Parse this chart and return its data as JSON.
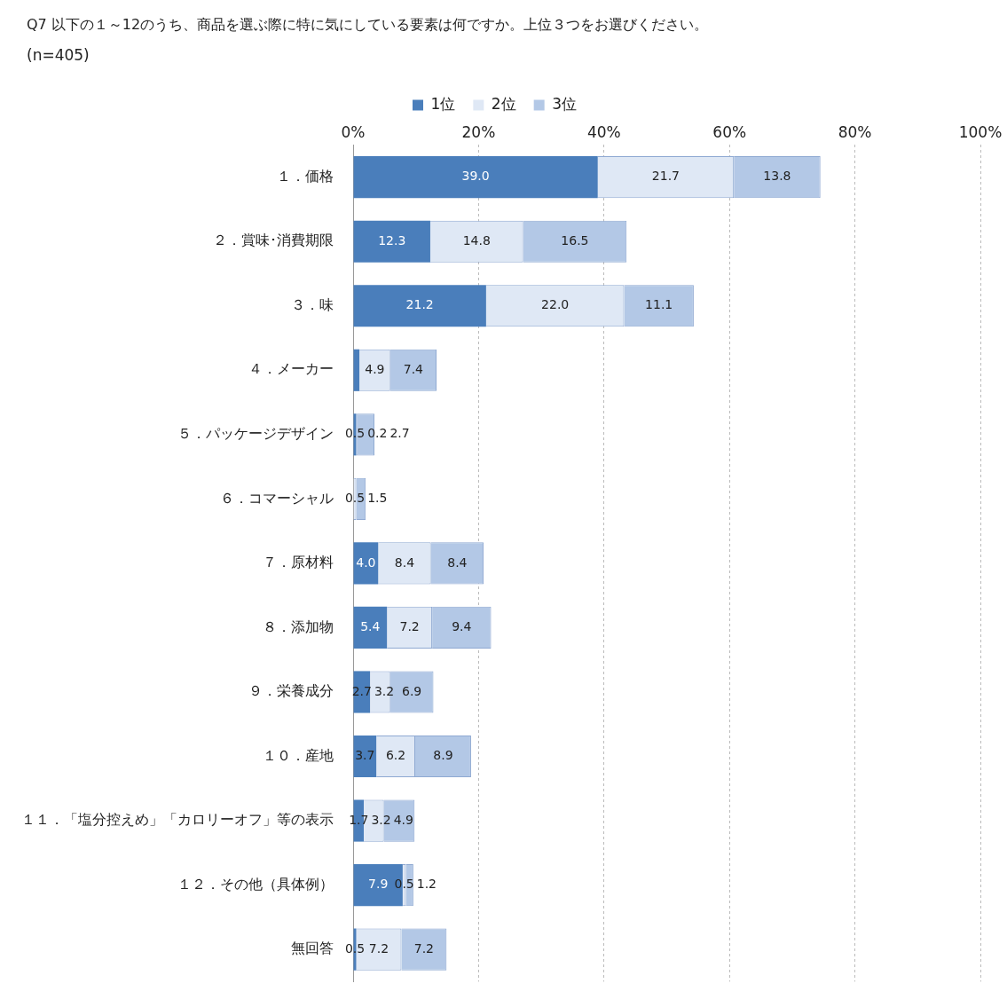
{
  "chart_data": {
    "type": "bar",
    "orientation": "horizontal",
    "stacked": true,
    "title": "Q7 以下の１～12のうち、商品を選ぶ際に特に気にしている要素は何ですか。上位３つをお選びください。",
    "subtitle": "(n=405)",
    "categories": [
      "１．価格",
      "２．賞味･消費期限",
      "３．味",
      "４．メーカー",
      "５．パッケージデザイン",
      "６．コマーシャル",
      "７．原材料",
      "８．添加物",
      "９．栄養成分",
      "１０．産地",
      "１１．「塩分控えめ」「カロリーオフ」等の表示",
      "１２．その他（具体例）",
      "無回答"
    ],
    "series": [
      {
        "name": "1位",
        "color": "#4a7ebb",
        "values": [
          39.0,
          12.3,
          21.2,
          1.0,
          0.5,
          0.0,
          4.0,
          5.4,
          2.7,
          3.7,
          1.7,
          7.9,
          0.5
        ],
        "value_labels": [
          "39.0",
          "12.3",
          "21.2",
          null,
          "0.5",
          null,
          "4.0",
          "5.4",
          "2.7",
          "3.7",
          "1.7",
          "7.9",
          "0.5"
        ]
      },
      {
        "name": "2位",
        "color": "#dfe8f5",
        "values": [
          21.7,
          14.8,
          22.0,
          4.9,
          0.2,
          0.5,
          8.4,
          7.2,
          3.2,
          6.2,
          3.2,
          0.5,
          7.2
        ],
        "value_labels": [
          "21.7",
          "14.8",
          "22.0",
          "4.9",
          "0.2",
          "0.5",
          "8.4",
          "7.2",
          "3.2",
          "6.2",
          "3.2",
          "0.5",
          "7.2"
        ]
      },
      {
        "name": "3位",
        "color": "#b3c8e6",
        "values": [
          13.8,
          16.5,
          11.1,
          7.4,
          2.7,
          1.5,
          8.4,
          9.4,
          6.9,
          8.9,
          4.9,
          1.2,
          7.2
        ],
        "value_labels": [
          "13.8",
          "16.5",
          "11.1",
          "7.4",
          "2.7",
          "1.5",
          "8.4",
          "9.4",
          "6.9",
          "8.9",
          "4.9",
          "1.2",
          "7.2"
        ]
      }
    ],
    "xlim": [
      0,
      100
    ],
    "xticks": [
      {
        "value": 0,
        "label": "0%"
      },
      {
        "value": 20,
        "label": "20%"
      },
      {
        "value": 40,
        "label": "40%"
      },
      {
        "value": 60,
        "label": "60%"
      },
      {
        "value": 80,
        "label": "80%"
      },
      {
        "value": 100,
        "label": "100%"
      }
    ],
    "grid": "x",
    "legend": "top"
  }
}
